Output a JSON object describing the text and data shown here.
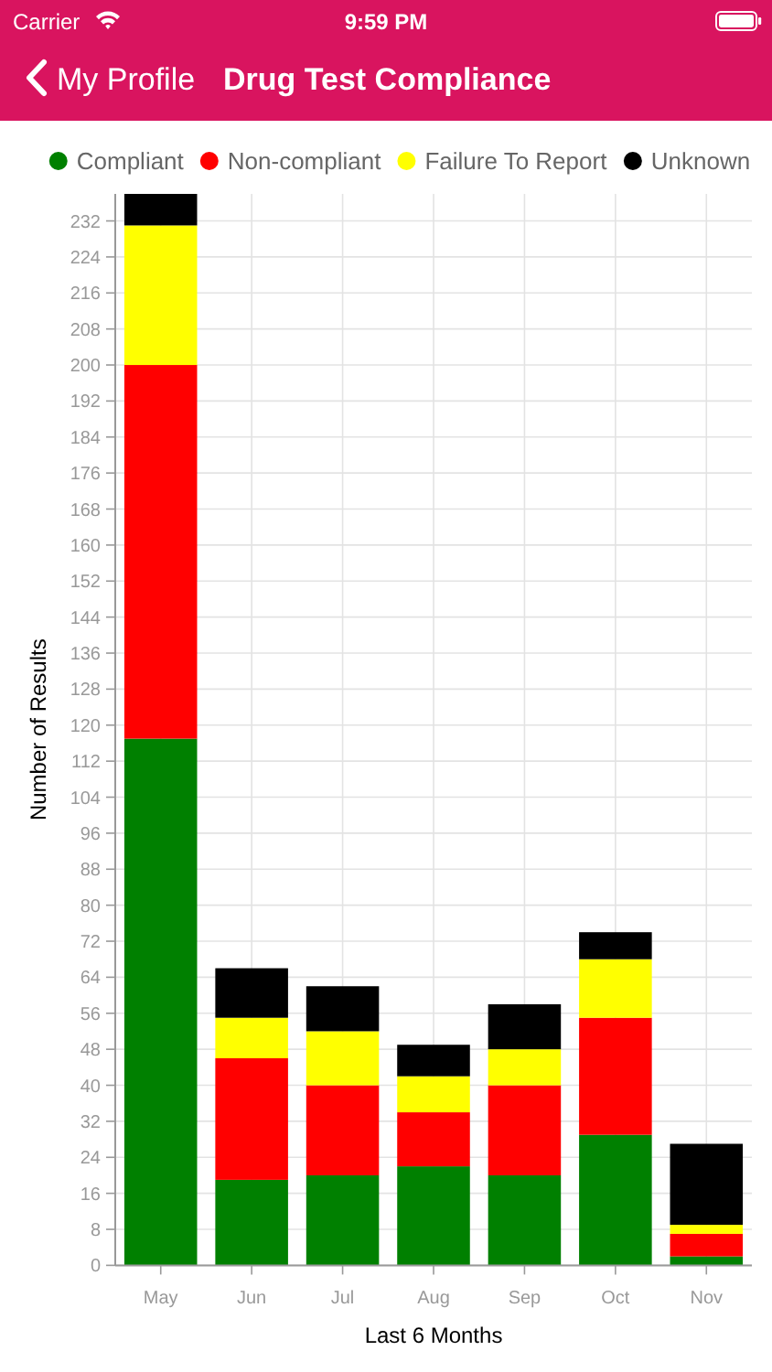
{
  "chart_data": {
    "type": "bar",
    "title": "Drug Test Compliance",
    "annotations": [
      "Carrier",
      "9:59 PM",
      "My Profile"
    ],
    "xlabel": "Last 6 Months",
    "ylabel": "Number of Results",
    "categories": [
      "May",
      "Jun",
      "Jul",
      "Aug",
      "Sep",
      "Oct",
      "Nov"
    ],
    "series": [
      {
        "name": "Compliant",
        "color": "#008000",
        "values": [
          117,
          19,
          20,
          22,
          20,
          29,
          2
        ]
      },
      {
        "name": "Non-compliant",
        "color": "#ff0000",
        "values": [
          83,
          27,
          20,
          12,
          20,
          26,
          5
        ]
      },
      {
        "name": "Failure To Report",
        "color": "#ffff00",
        "values": [
          31,
          9,
          12,
          8,
          8,
          13,
          2
        ]
      },
      {
        "name": "Unknown",
        "color": "#000000",
        "values": [
          7,
          11,
          10,
          7,
          10,
          6,
          18
        ]
      }
    ],
    "stacked": true,
    "ylim": [
      0,
      238
    ],
    "yticks": [
      0,
      8,
      16,
      24,
      32,
      40,
      48,
      56,
      64,
      72,
      80,
      88,
      96,
      104,
      112,
      120,
      128,
      136,
      144,
      152,
      160,
      168,
      176,
      184,
      192,
      200,
      208,
      216,
      224,
      232
    ],
    "grid": true,
    "legend": "top"
  }
}
